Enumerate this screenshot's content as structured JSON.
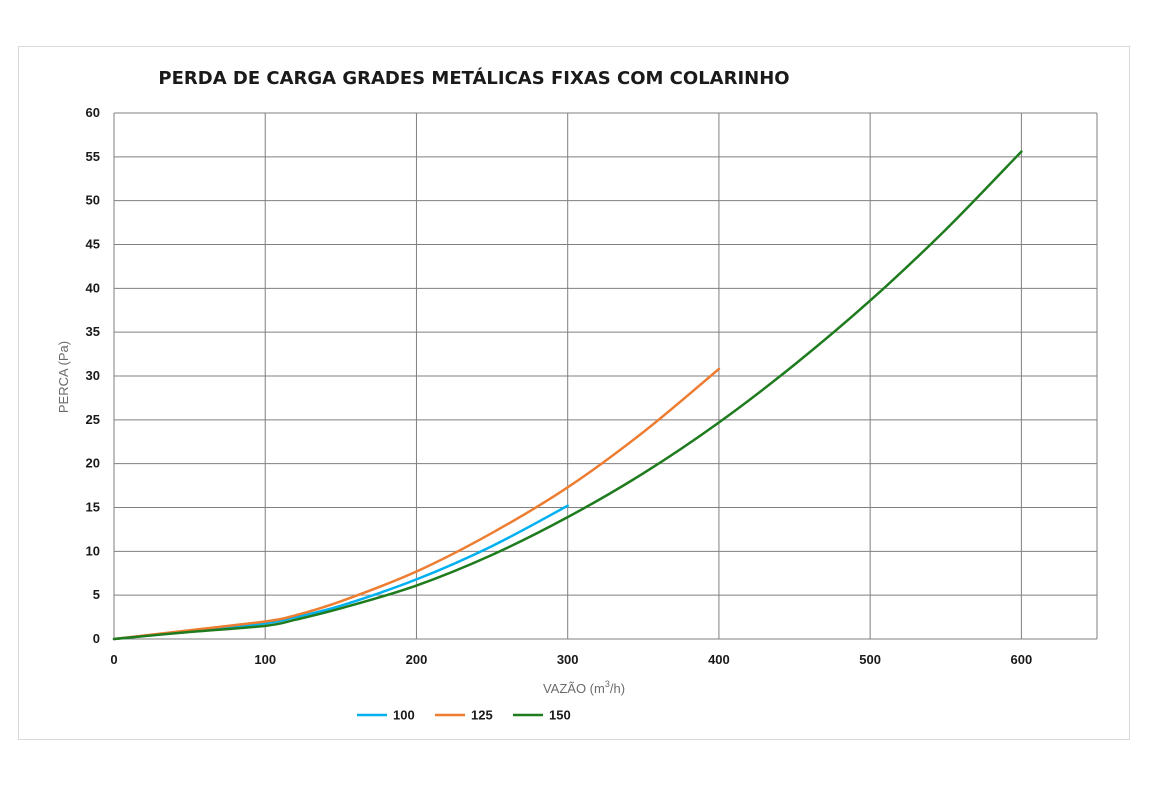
{
  "chart_data": {
    "type": "line",
    "title": "PERDA DE CARGA GRADES METÁLICAS FIXAS COM COLARINHO",
    "xlabel_prefix": "VAZÃO (m",
    "xlabel_sup": "3",
    "xlabel_suffix": "/h)",
    "ylabel": "PERCA (Pa)",
    "xlim": [
      0,
      650
    ],
    "ylim": [
      0,
      60
    ],
    "x_ticks": [
      0,
      100,
      200,
      300,
      400,
      500,
      600
    ],
    "y_ticks": [
      0,
      5,
      10,
      15,
      20,
      25,
      30,
      35,
      40,
      45,
      50,
      55,
      60
    ],
    "grid": true,
    "legend_position": "bottom",
    "series": [
      {
        "name": "100",
        "color": "#00b0f0",
        "points": [
          [
            0,
            0
          ],
          [
            50,
            0.9
          ],
          [
            100,
            1.8
          ],
          [
            120,
            2.5
          ],
          [
            150,
            3.8
          ],
          [
            200,
            6.8
          ],
          [
            250,
            10.6
          ],
          [
            300,
            15.2
          ]
        ]
      },
      {
        "name": "125",
        "color": "#ed7d31",
        "points": [
          [
            0,
            0
          ],
          [
            50,
            1.0
          ],
          [
            100,
            2.0
          ],
          [
            120,
            2.7
          ],
          [
            150,
            4.3
          ],
          [
            200,
            7.7
          ],
          [
            250,
            12.1
          ],
          [
            300,
            17.3
          ],
          [
            350,
            23.6
          ],
          [
            400,
            30.8
          ]
        ]
      },
      {
        "name": "150",
        "color": "#1e7b1e",
        "points": [
          [
            0,
            0
          ],
          [
            50,
            0.8
          ],
          [
            100,
            1.5
          ],
          [
            120,
            2.2
          ],
          [
            150,
            3.5
          ],
          [
            200,
            6.1
          ],
          [
            250,
            9.6
          ],
          [
            300,
            13.9
          ],
          [
            350,
            18.9
          ],
          [
            400,
            24.7
          ],
          [
            450,
            31.3
          ],
          [
            500,
            38.6
          ],
          [
            550,
            46.7
          ],
          [
            600,
            55.6
          ]
        ]
      }
    ]
  }
}
